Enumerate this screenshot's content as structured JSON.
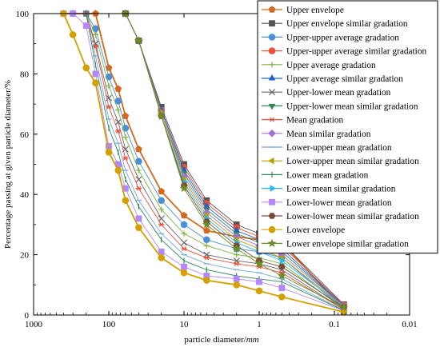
{
  "chart_data": {
    "type": "line",
    "xlabel": "particle diameter/",
    "xlabel_unit": "mm",
    "ylabel": "Percentage passing at given particle diameter/%",
    "x_scale": "log",
    "x_reversed": true,
    "xlim": [
      1000,
      0.01
    ],
    "ylim": [
      0,
      100
    ],
    "x_ticks": [
      1000,
      100,
      10,
      1,
      0.1,
      0.01
    ],
    "x_tick_labels": [
      "1000",
      "100",
      "10",
      "1",
      "0.1",
      "0.01"
    ],
    "y_ticks": [
      0,
      20,
      40,
      60,
      80,
      100
    ],
    "y_tick_labels": [
      "0",
      "20",
      "40",
      "60",
      "80",
      "100"
    ],
    "grid": false,
    "legend_position": "right",
    "x": [
      400,
      300,
      200,
      150,
      100,
      75,
      60,
      40,
      20,
      10,
      5,
      2,
      1,
      0.5,
      0.075
    ],
    "series": [
      {
        "name": "Upper envelope",
        "marker": "pentagon",
        "color": "#D2691E",
        "values": [
          100,
          100,
          100,
          100,
          82,
          75,
          66,
          55,
          41,
          33,
          28,
          26,
          25,
          24,
          2
        ]
      },
      {
        "name": "Upper envelope similar gradation",
        "marker": "square",
        "color": "#555555",
        "values": [
          null,
          null,
          null,
          null,
          null,
          null,
          100,
          91,
          69,
          50,
          38,
          30,
          27,
          24,
          3.5
        ]
      },
      {
        "name": "Upper-upper average gradation",
        "marker": "circle",
        "color": "#4A90D9",
        "values": [
          100,
          100,
          100,
          95,
          79,
          71,
          62,
          51,
          38,
          30,
          25,
          22,
          21,
          19,
          2
        ]
      },
      {
        "name": "Upper-upper average similar gradation",
        "marker": "circle",
        "color": "#E8513A",
        "values": [
          null,
          null,
          null,
          null,
          null,
          null,
          100,
          91,
          68,
          49,
          37,
          29,
          26,
          23,
          3.3
        ]
      },
      {
        "name": "Upper average gradation",
        "marker": "plus",
        "color": "#7CB342",
        "values": [
          100,
          100,
          100,
          93,
          76,
          68,
          59,
          48,
          35,
          27,
          23,
          20,
          19,
          17,
          2
        ]
      },
      {
        "name": "Upper average similar gradation",
        "marker": "triangle",
        "color": "#1F5FD6",
        "values": [
          null,
          null,
          null,
          null,
          null,
          null,
          100,
          91,
          68,
          48,
          36,
          28,
          25,
          22,
          3.1
        ]
      },
      {
        "name": "Upper-lower mean gradation",
        "marker": "x",
        "color": "#666666",
        "values": [
          100,
          100,
          100,
          90,
          72,
          64,
          55,
          45,
          32,
          24,
          20,
          18,
          17,
          15,
          1.8
        ]
      },
      {
        "name": "Upper-lower mean similar gradation",
        "marker": "triangle-down",
        "color": "#2E8B57",
        "values": [
          null,
          null,
          null,
          null,
          null,
          null,
          100,
          91,
          67,
          47,
          35,
          27,
          24,
          21,
          3
        ]
      },
      {
        "name": "Mean gradation",
        "marker": "asterisk",
        "color": "#E8513A",
        "values": [
          100,
          100,
          100,
          89,
          69,
          61,
          52,
          42,
          30,
          22,
          19,
          17,
          16,
          14,
          1.8
        ]
      },
      {
        "name": "Mean similar gradation",
        "marker": "diamond",
        "color": "#A070D8",
        "values": [
          null,
          null,
          null,
          null,
          null,
          null,
          100,
          91,
          67,
          46,
          34,
          26,
          23,
          20,
          3
        ]
      },
      {
        "name": "Lower-upper mean gradation",
        "marker": "dash",
        "color": "#6FA8DC",
        "values": [
          100,
          100,
          100,
          86,
          65,
          57,
          48,
          38,
          27,
          20,
          17,
          15,
          14,
          12,
          1.6
        ]
      },
      {
        "name": "Lower-upper mean similar gradation",
        "marker": "triangle-left",
        "color": "#B8A000",
        "values": [
          null,
          null,
          null,
          null,
          null,
          null,
          100,
          91,
          67,
          45,
          33,
          25,
          22,
          19,
          2.8
        ]
      },
      {
        "name": "Lower mean gradation",
        "marker": "vbar",
        "color": "#2E8B57",
        "values": [
          100,
          100,
          100,
          83,
          62,
          54,
          45,
          36,
          25,
          18,
          15,
          13,
          12,
          11,
          1.5
        ]
      },
      {
        "name": "Lower mean similar gradation",
        "marker": "triangle-right",
        "color": "#29B6F6",
        "values": [
          null,
          null,
          null,
          null,
          null,
          null,
          100,
          91,
          66,
          44,
          32,
          24,
          21,
          18,
          2.7
        ]
      },
      {
        "name": "Lower-lower mean gradation",
        "marker": "square",
        "color": "#B388FF",
        "values": [
          100,
          100,
          96,
          80,
          56,
          50,
          42,
          32,
          21,
          16,
          13,
          12,
          11,
          9,
          1.4
        ]
      },
      {
        "name": "Lower-lower mean similar gradation",
        "marker": "hexagon",
        "color": "#7B4B3A",
        "values": [
          null,
          null,
          null,
          null,
          null,
          null,
          100,
          91,
          66,
          43,
          31,
          23,
          18,
          16,
          2.6
        ]
      },
      {
        "name": "Lower envelope",
        "marker": "circle",
        "color": "#D4A000",
        "values": [
          100,
          93,
          82,
          77,
          54,
          48,
          38,
          29,
          19,
          14,
          11.5,
          10,
          8,
          6,
          1
        ]
      },
      {
        "name": "Lower envelope similar gradation",
        "marker": "star",
        "color": "#6B8E23",
        "values": [
          null,
          null,
          null,
          null,
          null,
          null,
          100,
          91,
          66,
          42,
          30,
          22,
          17,
          13,
          2.5
        ]
      }
    ]
  }
}
